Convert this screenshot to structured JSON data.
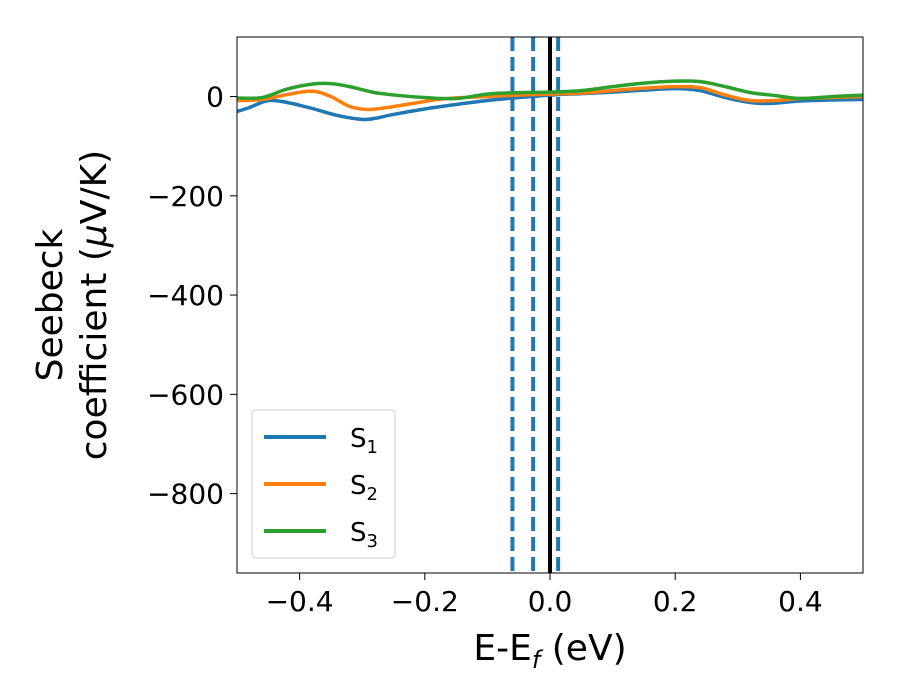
{
  "chart_data": {
    "type": "line",
    "xlabel": "E-E",
    "xlabel_sub": "f",
    "xlabel_unit": " (eV)",
    "ylabel_line1": "Seebeck",
    "ylabel_line2_prefix": "coefficient  (",
    "ylabel_mu": "μ",
    "ylabel_line2_suffix": "V/K)",
    "xlim": [
      -0.5,
      0.5
    ],
    "ylim": [
      -960,
      120
    ],
    "x_ticks": [
      -0.4,
      -0.2,
      0.0,
      0.2,
      0.4
    ],
    "x_tick_labels": [
      "−0.4",
      "−0.2",
      "0.0",
      "0.2",
      "0.4"
    ],
    "y_ticks": [
      0,
      -200,
      -400,
      -600,
      -800
    ],
    "y_tick_labels": [
      "0",
      "−200",
      "−400",
      "−600",
      "−800"
    ],
    "legend_position": "lower-left",
    "series": [
      {
        "name": "S",
        "subscript": "1",
        "color": "#1f77b4",
        "x": [
          -0.5,
          -0.48,
          -0.45,
          -0.42,
          -0.38,
          -0.34,
          -0.3,
          -0.28,
          -0.25,
          -0.2,
          -0.15,
          -0.1,
          -0.05,
          0.0,
          0.05,
          0.1,
          0.15,
          0.2,
          0.24,
          0.28,
          0.32,
          0.35,
          0.4,
          0.45,
          0.5
        ],
        "y": [
          -30,
          -22,
          -8,
          -12,
          -24,
          -38,
          -46,
          -44,
          -36,
          -25,
          -16,
          -8,
          -2,
          3,
          6,
          9,
          13,
          16,
          12,
          -2,
          -12,
          -14,
          -9,
          -7,
          -6
        ]
      },
      {
        "name": "S",
        "subscript": "2",
        "color": "#ff7f0e",
        "x": [
          -0.5,
          -0.46,
          -0.42,
          -0.38,
          -0.35,
          -0.32,
          -0.29,
          -0.26,
          -0.22,
          -0.18,
          -0.14,
          -0.1,
          -0.05,
          0.0,
          0.05,
          0.1,
          0.15,
          0.2,
          0.24,
          0.28,
          0.32,
          0.36,
          0.4,
          0.45,
          0.5
        ],
        "y": [
          -8,
          -6,
          4,
          11,
          0,
          -20,
          -26,
          -22,
          -14,
          -6,
          -2,
          0,
          3,
          5,
          7,
          12,
          17,
          20,
          18,
          3,
          -8,
          -8,
          -4,
          -2,
          0
        ]
      },
      {
        "name": "S",
        "subscript": "3",
        "color": "#2ca02c",
        "x": [
          -0.5,
          -0.46,
          -0.42,
          -0.38,
          -0.35,
          -0.32,
          -0.28,
          -0.24,
          -0.2,
          -0.15,
          -0.1,
          -0.05,
          0.0,
          0.05,
          0.1,
          0.15,
          0.2,
          0.24,
          0.28,
          0.32,
          0.36,
          0.4,
          0.45,
          0.5
        ],
        "y": [
          -3,
          -2,
          15,
          25,
          26,
          20,
          8,
          2,
          -2,
          -4,
          5,
          8,
          9,
          12,
          20,
          27,
          31,
          30,
          20,
          8,
          2,
          -4,
          0,
          3
        ]
      }
    ],
    "vertical_lines": [
      {
        "x": -0.06,
        "style": "dashed",
        "color": "#1f77b4"
      },
      {
        "x": -0.027,
        "style": "dashed",
        "color": "#1f77b4"
      },
      {
        "x": 0.013,
        "style": "dashed",
        "color": "#1f77b4"
      },
      {
        "x": 0.0,
        "style": "solid",
        "color": "#000000"
      }
    ]
  }
}
